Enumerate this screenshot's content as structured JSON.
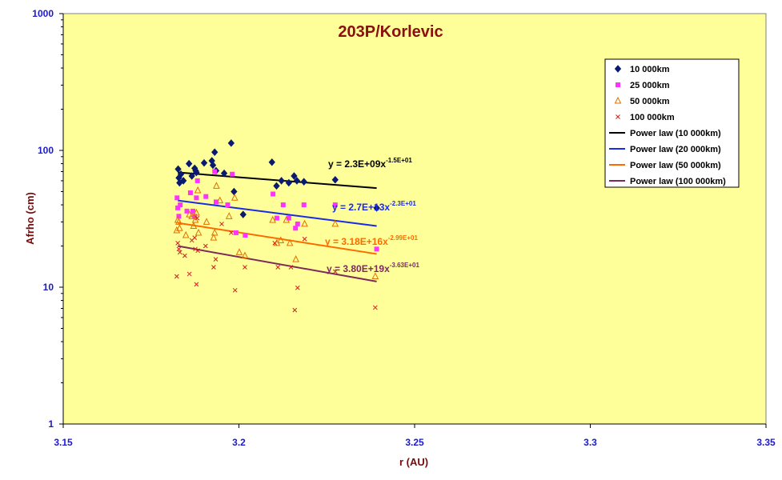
{
  "chart_data": {
    "type": "scatter",
    "title": "203P/Korlevic",
    "xlabel": "r (AU)",
    "ylabel": "Afrho (cm)",
    "x_ticks": [
      "3.15",
      "3.2",
      "3.25",
      "3.3",
      "3.35"
    ],
    "y_ticks": [
      "1",
      "10",
      "100",
      "1000"
    ],
    "xlim": [
      3.15,
      3.35
    ],
    "ylim": [
      1,
      1000
    ],
    "y_scale": "log",
    "legend_position": "top-right",
    "colors": {
      "plot_bg": "#ffff99",
      "chart_bg": "#ffffff",
      "series_10000": "#0a1a70",
      "series_25000": "#ff33ff",
      "series_50000": "#e07000",
      "series_100000": "#d02020",
      "fit_10000": "#000000",
      "fit_20000": "#1a2ae8",
      "fit_50000": "#ff6a00",
      "fit_100000": "#7b2a5a"
    },
    "series": [
      {
        "name": "10 000km",
        "marker": "diamond",
        "points": [
          [
            3.1827,
            73
          ],
          [
            3.1829,
            63
          ],
          [
            3.1831,
            58
          ],
          [
            3.1835,
            67
          ],
          [
            3.1842,
            60
          ],
          [
            3.1858,
            80
          ],
          [
            3.1866,
            65
          ],
          [
            3.1874,
            74
          ],
          [
            3.1877,
            71
          ],
          [
            3.1879,
            69
          ],
          [
            3.1901,
            81
          ],
          [
            3.1923,
            84
          ],
          [
            3.1926,
            78
          ],
          [
            3.1931,
            97
          ],
          [
            3.1935,
            71
          ],
          [
            3.1958,
            68
          ],
          [
            3.1978,
            113
          ],
          [
            3.1986,
            50
          ],
          [
            3.2012,
            34
          ],
          [
            3.2094,
            82
          ],
          [
            3.2107,
            55
          ],
          [
            3.2121,
            60
          ],
          [
            3.2142,
            58
          ],
          [
            3.2157,
            65
          ],
          [
            3.2165,
            60
          ],
          [
            3.2185,
            59
          ],
          [
            3.2274,
            61
          ],
          [
            3.2392,
            38
          ]
        ]
      },
      {
        "name": "25 000km",
        "marker": "square",
        "points": [
          [
            3.1824,
            45
          ],
          [
            3.1826,
            38
          ],
          [
            3.1829,
            33
          ],
          [
            3.1833,
            40
          ],
          [
            3.1852,
            36
          ],
          [
            3.1862,
            49
          ],
          [
            3.1869,
            36
          ],
          [
            3.1874,
            33
          ],
          [
            3.1879,
            45
          ],
          [
            3.1882,
            60
          ],
          [
            3.1906,
            46
          ],
          [
            3.1931,
            70
          ],
          [
            3.1935,
            42
          ],
          [
            3.1968,
            40
          ],
          [
            3.1981,
            67
          ],
          [
            3.1992,
            25
          ],
          [
            3.2018,
            24
          ],
          [
            3.2097,
            48
          ],
          [
            3.2108,
            32
          ],
          [
            3.2126,
            40
          ],
          [
            3.2142,
            32
          ],
          [
            3.2161,
            27
          ],
          [
            3.2167,
            29
          ],
          [
            3.2185,
            40
          ],
          [
            3.2274,
            40
          ],
          [
            3.2392,
            19
          ]
        ]
      },
      {
        "name": "50 000km",
        "marker": "triangle",
        "points": [
          [
            3.1823,
            26
          ],
          [
            3.1826,
            31
          ],
          [
            3.1829,
            30
          ],
          [
            3.1831,
            27
          ],
          [
            3.1849,
            24
          ],
          [
            3.1859,
            34
          ],
          [
            3.1866,
            33
          ],
          [
            3.1871,
            28
          ],
          [
            3.1876,
            31
          ],
          [
            3.1879,
            35
          ],
          [
            3.1883,
            51
          ],
          [
            3.1885,
            25
          ],
          [
            3.1908,
            30
          ],
          [
            3.1928,
            23
          ],
          [
            3.1931,
            25
          ],
          [
            3.1936,
            55
          ],
          [
            3.1946,
            43
          ],
          [
            3.1972,
            33
          ],
          [
            3.1988,
            45
          ],
          [
            3.2001,
            18
          ],
          [
            3.2017,
            17
          ],
          [
            3.2096,
            31
          ],
          [
            3.2108,
            21
          ],
          [
            3.2119,
            22
          ],
          [
            3.2135,
            31
          ],
          [
            3.2145,
            21
          ],
          [
            3.2162,
            16
          ],
          [
            3.2187,
            29
          ],
          [
            3.2274,
            29
          ],
          [
            3.2388,
            12
          ]
        ]
      },
      {
        "name": "100 000km",
        "marker": "x",
        "points": [
          [
            3.1823,
            12
          ],
          [
            3.1826,
            21
          ],
          [
            3.1829,
            19
          ],
          [
            3.1832,
            18
          ],
          [
            3.1846,
            17
          ],
          [
            3.1859,
            12.5
          ],
          [
            3.1866,
            22
          ],
          [
            3.1874,
            23
          ],
          [
            3.1876,
            19
          ],
          [
            3.1879,
            10.5
          ],
          [
            3.1881,
            32
          ],
          [
            3.1883,
            18.5
          ],
          [
            3.1905,
            20
          ],
          [
            3.1928,
            14
          ],
          [
            3.1934,
            16
          ],
          [
            3.1951,
            29
          ],
          [
            3.1978,
            25
          ],
          [
            3.1989,
            9.5
          ],
          [
            3.2017,
            14
          ],
          [
            3.2102,
            21
          ],
          [
            3.2111,
            14
          ],
          [
            3.2148,
            14
          ],
          [
            3.2159,
            6.8
          ],
          [
            3.2167,
            9.9
          ],
          [
            3.2187,
            22.5
          ],
          [
            3.2274,
            13
          ],
          [
            3.2388,
            7.1
          ]
        ]
      }
    ],
    "fits": [
      {
        "name": "Power law (10 000km)",
        "x": [
          3.1826,
          3.2392
        ],
        "y": [
          69,
          53
        ]
      },
      {
        "name": "Power law (20 000km)",
        "x": [
          3.1826,
          3.2392
        ],
        "y": [
          43,
          28
        ]
      },
      {
        "name": "Power law (50 000km)",
        "x": [
          3.1826,
          3.2392
        ],
        "y": [
          29.5,
          17.5
        ]
      },
      {
        "name": "Power law (100 000km)",
        "x": [
          3.1826,
          3.2392
        ],
        "y": [
          20,
          11
        ]
      }
    ],
    "equations": [
      {
        "text": "y = 2.3E+09x",
        "sup": "-1.5E+01",
        "color": "#000000"
      },
      {
        "text": "y = 2.7E+13x",
        "sup": "-2.3E+01",
        "color": "#1a2ae8"
      },
      {
        "text": "y = 3.18E+16x",
        "sup": "-2.99E+01",
        "color": "#ff6a00"
      },
      {
        "text": "y = 3.80E+19x",
        "sup": "-3.63E+01",
        "color": "#7b2a5a"
      }
    ]
  }
}
